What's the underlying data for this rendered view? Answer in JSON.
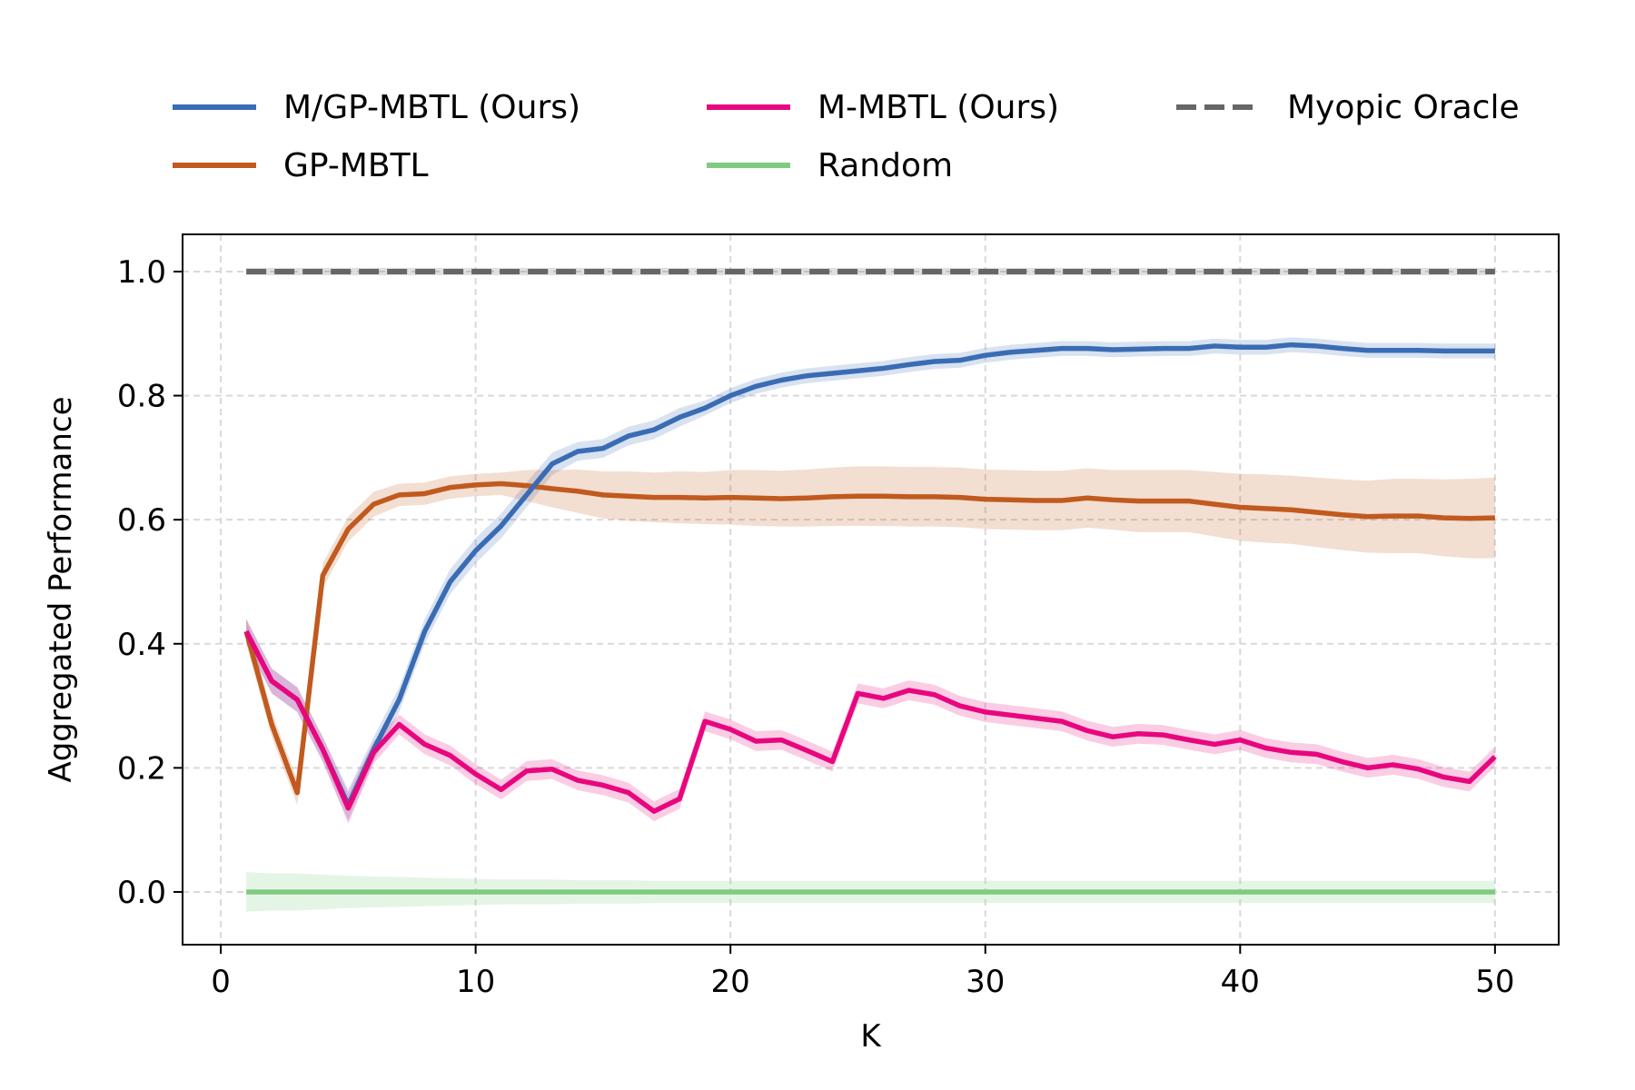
{
  "chart_data": {
    "type": "line",
    "title": "",
    "xlabel": "K",
    "ylabel": "Aggregated Performance",
    "xlim": [
      -1.5,
      52.5
    ],
    "ylim": [
      -0.085,
      1.06
    ],
    "xticks": [
      0,
      10,
      20,
      30,
      40,
      50
    ],
    "yticks": [
      0.0,
      0.2,
      0.4,
      0.6,
      0.8,
      1.0
    ],
    "xtick_labels": [
      "0",
      "10",
      "20",
      "30",
      "40",
      "50"
    ],
    "ytick_labels": [
      "0.0",
      "0.2",
      "0.4",
      "0.6",
      "0.8",
      "1.0"
    ],
    "grid": true,
    "legend_position": "top, above axes, 3 columns",
    "x": [
      1,
      2,
      3,
      4,
      5,
      6,
      7,
      8,
      9,
      10,
      11,
      12,
      13,
      14,
      15,
      16,
      17,
      18,
      19,
      20,
      21,
      22,
      23,
      24,
      25,
      26,
      27,
      28,
      29,
      30,
      31,
      32,
      33,
      34,
      35,
      36,
      37,
      38,
      39,
      40,
      41,
      42,
      43,
      44,
      45,
      46,
      47,
      48,
      49,
      50
    ],
    "series": [
      {
        "name": "M/GP-MBTL (Ours)",
        "color": "#3a6cb4",
        "dash": false,
        "values": [
          0.42,
          0.34,
          0.31,
          0.23,
          0.14,
          0.23,
          0.31,
          0.42,
          0.5,
          0.55,
          0.59,
          0.64,
          0.69,
          0.71,
          0.715,
          0.735,
          0.745,
          0.765,
          0.78,
          0.8,
          0.815,
          0.825,
          0.832,
          0.836,
          0.84,
          0.844,
          0.85,
          0.855,
          0.857,
          0.865,
          0.87,
          0.873,
          0.876,
          0.876,
          0.874,
          0.875,
          0.876,
          0.876,
          0.88,
          0.878,
          0.878,
          0.882,
          0.88,
          0.876,
          0.873,
          0.873,
          0.873,
          0.872,
          0.872,
          0.872
        ],
        "band": [
          0.02,
          0.02,
          0.02,
          0.02,
          0.025,
          0.02,
          0.02,
          0.02,
          0.02,
          0.02,
          0.02,
          0.02,
          0.018,
          0.015,
          0.015,
          0.015,
          0.015,
          0.015,
          0.012,
          0.012,
          0.012,
          0.012,
          0.012,
          0.012,
          0.012,
          0.012,
          0.012,
          0.012,
          0.012,
          0.012,
          0.012,
          0.012,
          0.012,
          0.012,
          0.012,
          0.012,
          0.012,
          0.012,
          0.012,
          0.012,
          0.012,
          0.012,
          0.012,
          0.012,
          0.012,
          0.012,
          0.012,
          0.012,
          0.012,
          0.012
        ]
      },
      {
        "name": "GP-MBTL",
        "color": "#c15a1e",
        "dash": false,
        "values": [
          0.42,
          0.27,
          0.16,
          0.51,
          0.585,
          0.625,
          0.64,
          0.642,
          0.652,
          0.656,
          0.658,
          0.655,
          0.65,
          0.646,
          0.64,
          0.638,
          0.636,
          0.636,
          0.635,
          0.636,
          0.635,
          0.634,
          0.635,
          0.637,
          0.638,
          0.638,
          0.637,
          0.637,
          0.636,
          0.633,
          0.632,
          0.631,
          0.631,
          0.635,
          0.632,
          0.63,
          0.63,
          0.63,
          0.625,
          0.62,
          0.618,
          0.616,
          0.612,
          0.608,
          0.605,
          0.606,
          0.606,
          0.603,
          0.602,
          0.603
        ],
        "band": [
          0.02,
          0.02,
          0.02,
          0.02,
          0.02,
          0.02,
          0.018,
          0.018,
          0.018,
          0.018,
          0.018,
          0.025,
          0.03,
          0.035,
          0.038,
          0.04,
          0.04,
          0.042,
          0.042,
          0.044,
          0.045,
          0.045,
          0.046,
          0.047,
          0.048,
          0.048,
          0.048,
          0.048,
          0.048,
          0.048,
          0.048,
          0.048,
          0.048,
          0.048,
          0.048,
          0.05,
          0.05,
          0.05,
          0.052,
          0.054,
          0.055,
          0.055,
          0.056,
          0.057,
          0.058,
          0.06,
          0.06,
          0.062,
          0.064,
          0.065
        ]
      },
      {
        "name": "M-MBTL (Ours)",
        "color": "#e8067e",
        "dash": false,
        "values": [
          0.42,
          0.34,
          0.31,
          0.23,
          0.135,
          0.225,
          0.27,
          0.238,
          0.22,
          0.19,
          0.165,
          0.195,
          0.198,
          0.18,
          0.172,
          0.16,
          0.13,
          0.15,
          0.275,
          0.262,
          0.243,
          0.245,
          0.228,
          0.21,
          0.32,
          0.312,
          0.325,
          0.318,
          0.3,
          0.29,
          0.285,
          0.28,
          0.275,
          0.26,
          0.25,
          0.255,
          0.253,
          0.245,
          0.238,
          0.245,
          0.232,
          0.225,
          0.222,
          0.21,
          0.2,
          0.205,
          0.198,
          0.185,
          0.178,
          0.218
        ],
        "band": [
          0.02,
          0.02,
          0.02,
          0.02,
          0.025,
          0.018,
          0.016,
          0.016,
          0.016,
          0.016,
          0.016,
          0.016,
          0.016,
          0.016,
          0.016,
          0.016,
          0.016,
          0.016,
          0.016,
          0.016,
          0.016,
          0.016,
          0.016,
          0.016,
          0.016,
          0.016,
          0.016,
          0.016,
          0.016,
          0.016,
          0.016,
          0.016,
          0.016,
          0.016,
          0.016,
          0.016,
          0.016,
          0.016,
          0.016,
          0.016,
          0.016,
          0.016,
          0.016,
          0.016,
          0.016,
          0.016,
          0.016,
          0.016,
          0.016,
          0.016
        ]
      },
      {
        "name": "Random",
        "color": "#7fcb7f",
        "dash": false,
        "values": [
          0,
          0,
          0,
          0,
          0,
          0,
          0,
          0,
          0,
          0,
          0,
          0,
          0,
          0,
          0,
          0,
          0,
          0,
          0,
          0,
          0,
          0,
          0,
          0,
          0,
          0,
          0,
          0,
          0,
          0,
          0,
          0,
          0,
          0,
          0,
          0,
          0,
          0,
          0,
          0,
          0,
          0,
          0,
          0,
          0,
          0,
          0,
          0,
          0,
          0
        ],
        "band": [
          0.032,
          0.03,
          0.03,
          0.028,
          0.026,
          0.025,
          0.024,
          0.023,
          0.022,
          0.021,
          0.02,
          0.02,
          0.02,
          0.019,
          0.019,
          0.019,
          0.018,
          0.018,
          0.018,
          0.018,
          0.018,
          0.018,
          0.018,
          0.018,
          0.018,
          0.018,
          0.018,
          0.018,
          0.018,
          0.018,
          0.018,
          0.018,
          0.018,
          0.018,
          0.018,
          0.018,
          0.018,
          0.018,
          0.018,
          0.018,
          0.018,
          0.018,
          0.018,
          0.018,
          0.018,
          0.018,
          0.018,
          0.018,
          0.018,
          0.018
        ]
      },
      {
        "name": "Myopic Oracle",
        "color": "#666666",
        "dash": true,
        "values": [
          1,
          1,
          1,
          1,
          1,
          1,
          1,
          1,
          1,
          1,
          1,
          1,
          1,
          1,
          1,
          1,
          1,
          1,
          1,
          1,
          1,
          1,
          1,
          1,
          1,
          1,
          1,
          1,
          1,
          1,
          1,
          1,
          1,
          1,
          1,
          1,
          1,
          1,
          1,
          1,
          1,
          1,
          1,
          1,
          1,
          1,
          1,
          1,
          1,
          1
        ],
        "band": [
          0.006,
          0.006,
          0.006,
          0.006,
          0.006,
          0.006,
          0.006,
          0.006,
          0.006,
          0.006,
          0.006,
          0.006,
          0.006,
          0.006,
          0.006,
          0.006,
          0.006,
          0.006,
          0.006,
          0.006,
          0.006,
          0.006,
          0.006,
          0.006,
          0.006,
          0.006,
          0.006,
          0.006,
          0.006,
          0.006,
          0.006,
          0.006,
          0.006,
          0.006,
          0.006,
          0.006,
          0.006,
          0.006,
          0.006,
          0.006,
          0.006,
          0.006,
          0.006,
          0.006,
          0.006,
          0.006,
          0.006,
          0.006,
          0.006,
          0.006
        ]
      }
    ],
    "legend": {
      "columns": [
        [
          "M/GP-MBTL (Ours)",
          "GP-MBTL"
        ],
        [
          "M-MBTL (Ours)",
          "Random"
        ],
        [
          "Myopic Oracle"
        ]
      ]
    }
  }
}
